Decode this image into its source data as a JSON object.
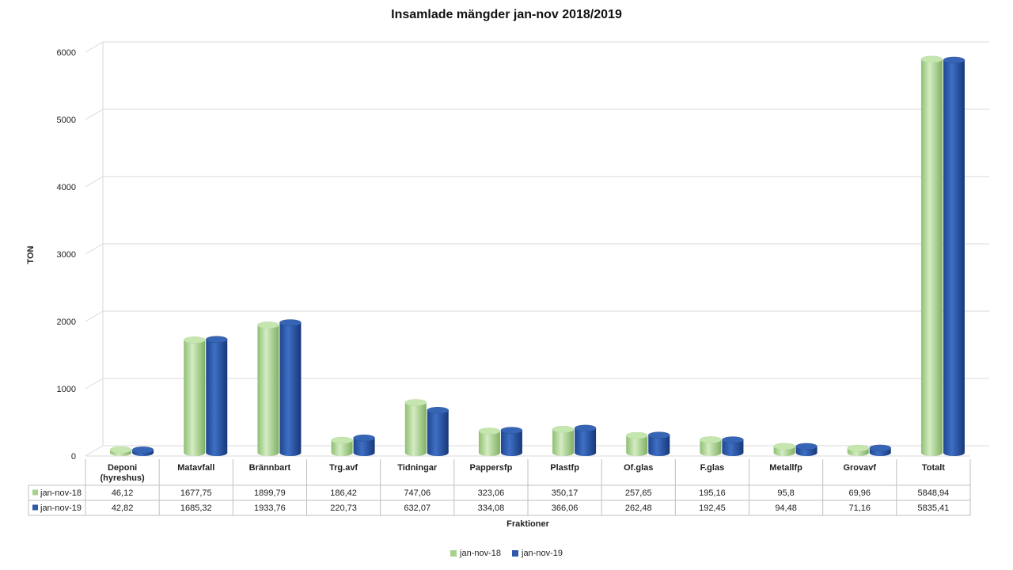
{
  "chart_data": {
    "type": "bar",
    "title": "Insamlade mängder jan-nov 2018/2019",
    "xlabel": "Fraktioner",
    "ylabel": "TON",
    "ylim": [
      0,
      6000
    ],
    "yticks": [
      "0",
      "1000",
      "2000",
      "3000",
      "4000",
      "5000",
      "6000"
    ],
    "grid": true,
    "legend_position": "bottom",
    "categories": [
      [
        "Deponi",
        "(hyreshus)"
      ],
      [
        "Matavfall"
      ],
      [
        "Brännbart"
      ],
      [
        "Trg.avf"
      ],
      [
        "Tidningar"
      ],
      [
        "Pappersfp"
      ],
      [
        "Plastfp"
      ],
      [
        "Of.glas"
      ],
      [
        "F.glas"
      ],
      [
        "Metallfp"
      ],
      [
        "Grovavf"
      ],
      [
        "Totalt"
      ]
    ],
    "series": [
      {
        "name": "jan-nov-18",
        "color": "#a9d18e",
        "values": [
          46.12,
          1677.75,
          1899.79,
          186.42,
          747.06,
          323.06,
          350.17,
          257.65,
          195.16,
          95.8,
          69.96,
          5848.94
        ],
        "labels": [
          "46,12",
          "1677,75",
          "1899,79",
          "186,42",
          "747,06",
          "323,06",
          "350,17",
          "257,65",
          "195,16",
          "95,8",
          "69,96",
          "5848,94"
        ]
      },
      {
        "name": "jan-nov-19",
        "color": "#2e5aa8",
        "values": [
          42.82,
          1685.32,
          1933.76,
          220.73,
          632.07,
          334.08,
          366.06,
          262.48,
          192.45,
          94.48,
          71.16,
          5835.41
        ],
        "labels": [
          "42,82",
          "1685,32",
          "1933,76",
          "220,73",
          "632,07",
          "334,08",
          "366,06",
          "262,48",
          "192,45",
          "94,48",
          "71,16",
          "5835,41"
        ]
      }
    ]
  }
}
